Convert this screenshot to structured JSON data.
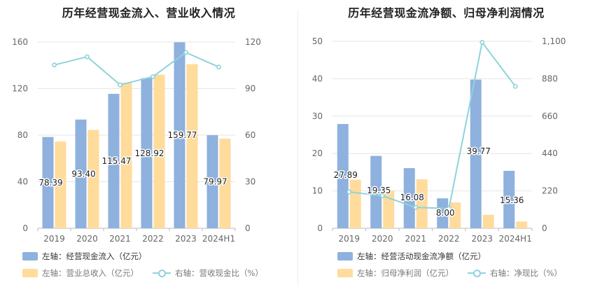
{
  "charts": {
    "left": {
      "title": "历年经营现金流入、营业收入情况",
      "colors": {
        "bar1": "#8eb1de",
        "bar2": "#ffdb9c",
        "line": "#8ed3db",
        "axis": "#666666",
        "grid": "#e6e6e6"
      },
      "legend": {
        "item1": "左轴：经营现金流入（亿元）",
        "item2": "左轴：营业总收入（亿元）",
        "item3": "右轴：营收现金比（%）"
      }
    },
    "right": {
      "title": "历年经营现金流净额、归母净利润情况",
      "colors": {
        "bar1": "#8eb1de",
        "bar2": "#ffdb9c",
        "line": "#8ed3db",
        "axis": "#666666",
        "grid": "#e6e6e6"
      },
      "legend": {
        "item1": "左轴：经营活动现金流净额（亿元）",
        "item2": "左轴：归母净利润（亿元）",
        "item3": "右轴：净现比（%）"
      }
    }
  },
  "chart_data": [
    {
      "type": "bar",
      "title": "历年经营现金流入、营业收入情况",
      "categories": [
        "2019",
        "2020",
        "2021",
        "2022",
        "2023",
        "2024H1"
      ],
      "series": [
        {
          "name": "左轴：经营现金流入（亿元）",
          "axis": "left",
          "kind": "bar",
          "values": [
            78.39,
            93.4,
            115.47,
            128.92,
            159.77,
            79.97
          ]
        },
        {
          "name": "左轴：营业总收入（亿元）",
          "axis": "left",
          "kind": "bar",
          "values": [
            74.5,
            84.5,
            125.0,
            132.0,
            141.0,
            77.0
          ]
        },
        {
          "name": "右轴：营收现金比（%）",
          "axis": "right",
          "kind": "line",
          "values": [
            105.2,
            110.5,
            92.4,
            97.7,
            113.3,
            103.9
          ]
        }
      ],
      "data_labels": [
        "78.39",
        "93.40",
        "115.47",
        "128.92",
        "159.77",
        "79.97"
      ],
      "y_left": {
        "min": 0,
        "max": 160,
        "ticks": [
          "0",
          "40",
          "80",
          "120",
          "160"
        ],
        "tick_values": [
          0,
          40,
          80,
          120,
          160
        ]
      },
      "y_right": {
        "min": 0,
        "max": 120,
        "ticks": [
          "0",
          "30",
          "60",
          "90",
          "120"
        ],
        "tick_values": [
          0,
          30,
          60,
          90,
          120
        ]
      }
    },
    {
      "type": "bar",
      "title": "历年经营现金流净额、归母净利润情况",
      "categories": [
        "2019",
        "2020",
        "2021",
        "2022",
        "2023",
        "2024H1"
      ],
      "series": [
        {
          "name": "左轴：经营活动现金流净额（亿元）",
          "axis": "left",
          "kind": "bar",
          "values": [
            27.89,
            19.35,
            16.08,
            8.0,
            39.77,
            15.36
          ]
        },
        {
          "name": "左轴：归母净利润（亿元）",
          "axis": "left",
          "kind": "bar",
          "values": [
            13.0,
            10.1,
            13.1,
            6.9,
            3.6,
            1.8
          ]
        },
        {
          "name": "右轴：净现比（%）",
          "axis": "right",
          "kind": "line",
          "values": [
            214,
            191,
            123,
            116,
            1094,
            835
          ]
        }
      ],
      "data_labels": [
        "27.89",
        "19.35",
        "16.08",
        "8.00",
        "39.77",
        "15.36"
      ],
      "y_left": {
        "min": 0,
        "max": 50,
        "ticks": [
          "0",
          "10",
          "20",
          "30",
          "40",
          "50"
        ],
        "tick_values": [
          0,
          10,
          20,
          30,
          40,
          50
        ]
      },
      "y_right": {
        "min": 0,
        "max": 1100,
        "ticks": [
          "0",
          "220",
          "440",
          "660",
          "880",
          "1,100"
        ],
        "tick_values": [
          0,
          220,
          440,
          660,
          880,
          1100
        ]
      }
    }
  ]
}
